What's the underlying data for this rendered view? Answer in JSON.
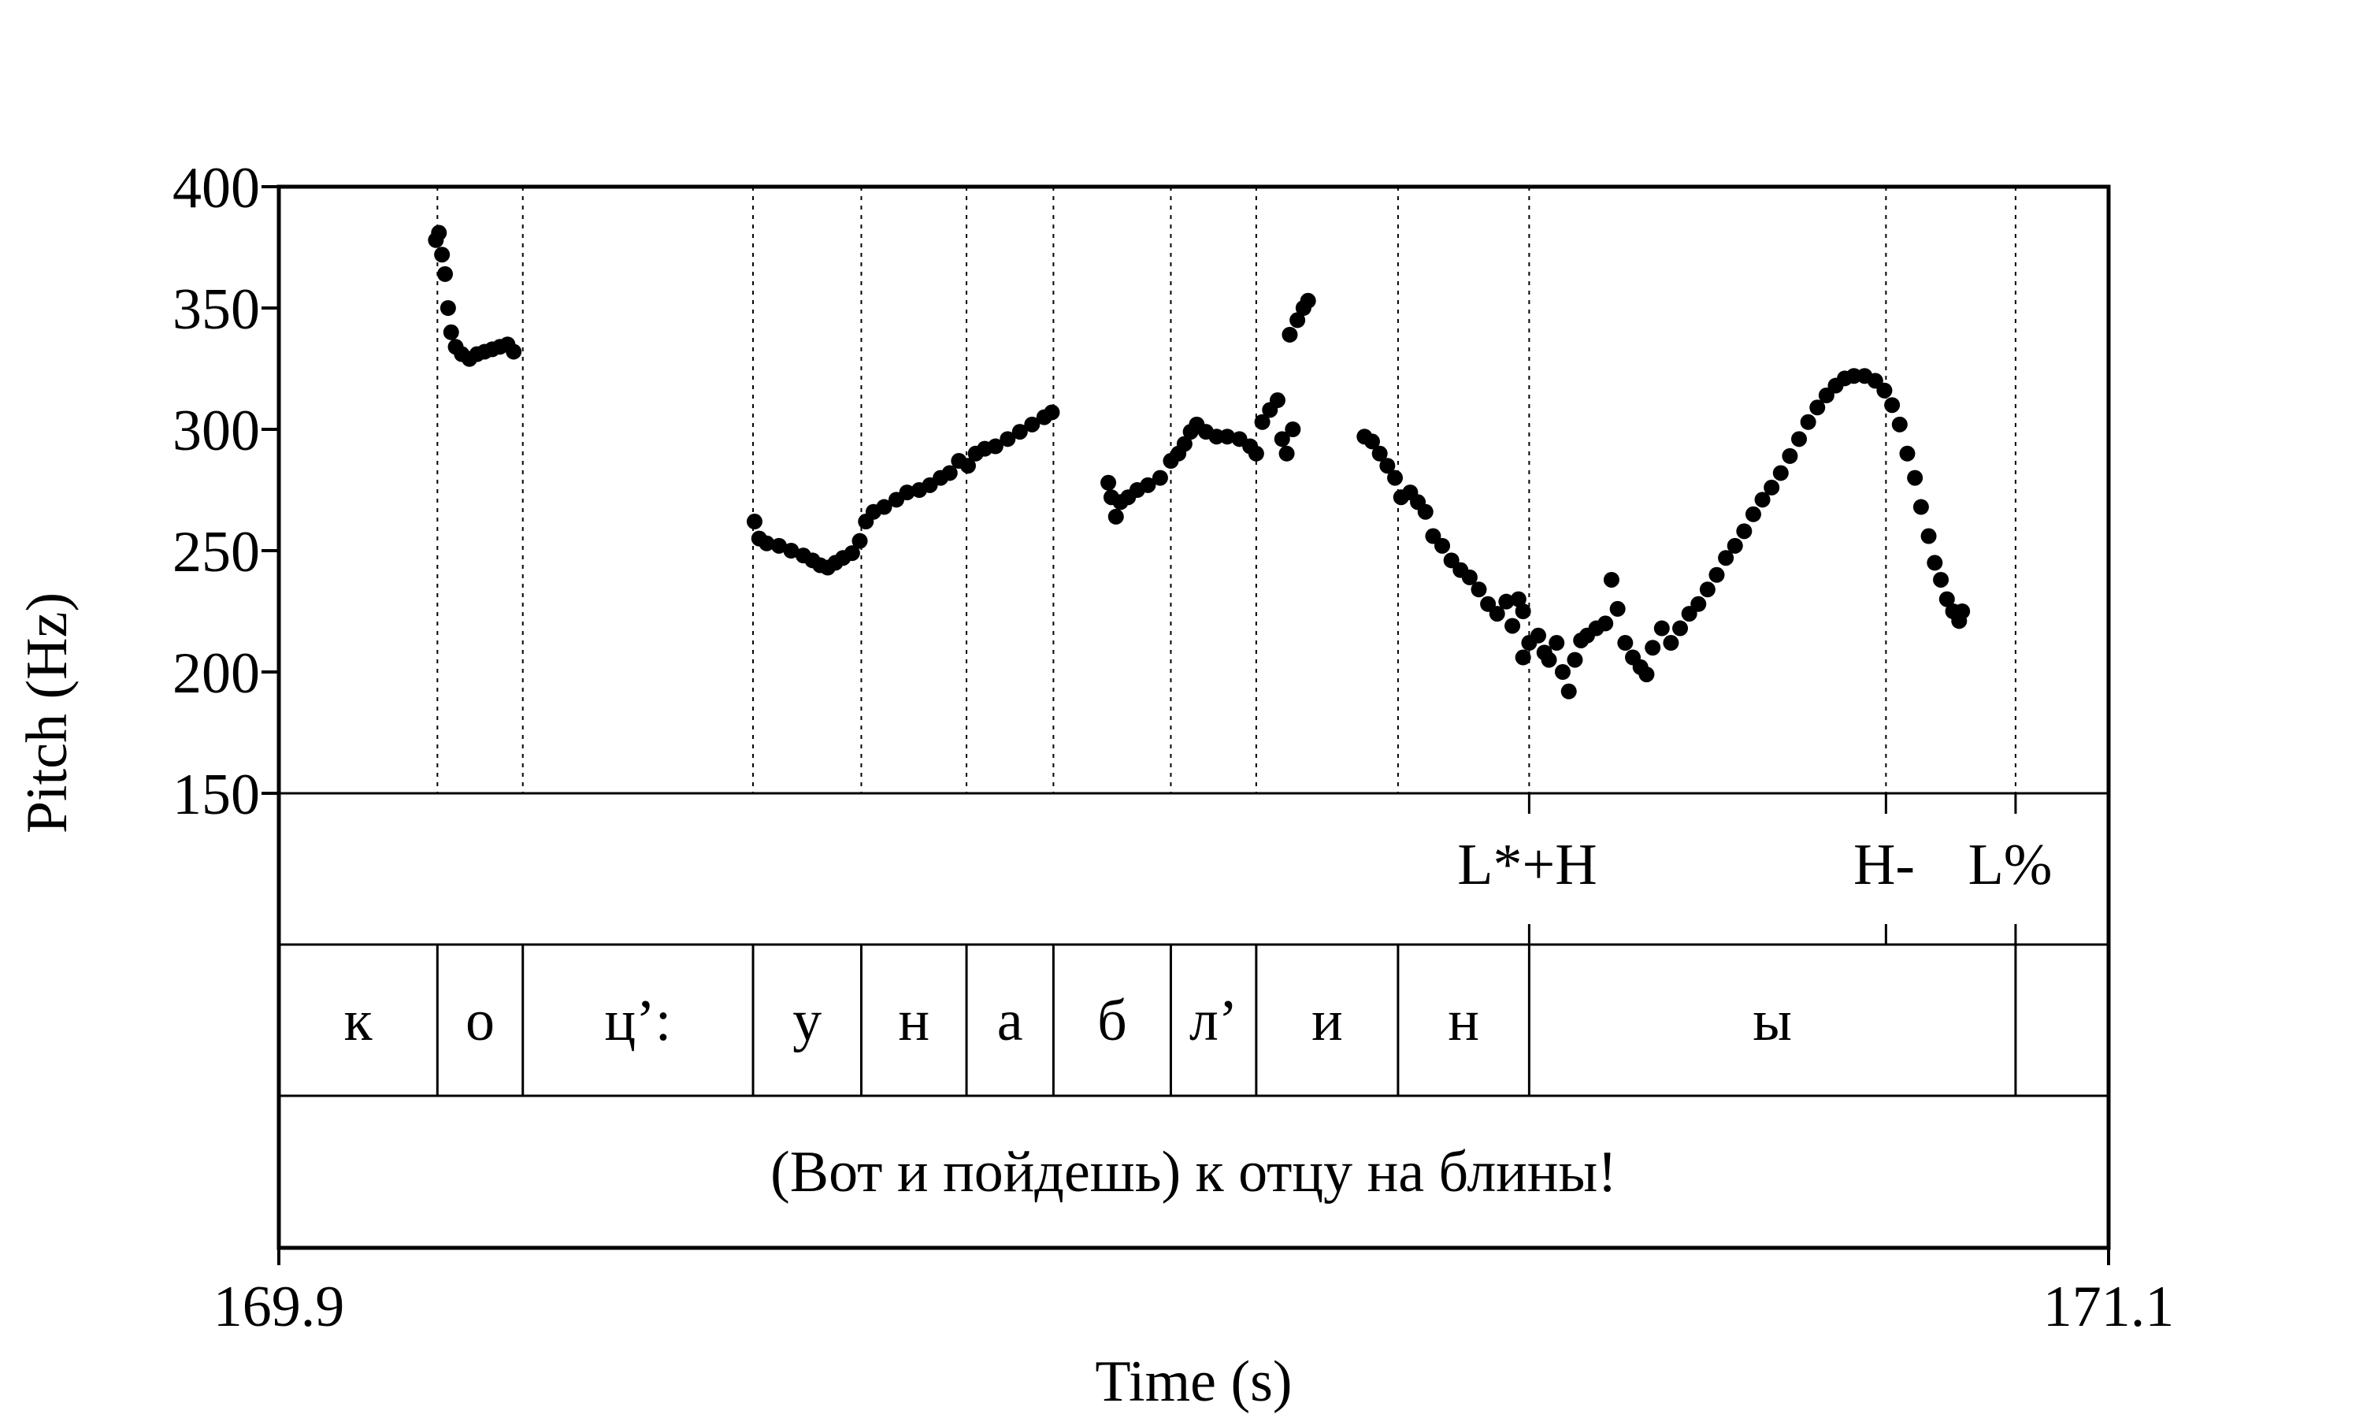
{
  "chart_data": {
    "type": "scatter",
    "xlabel": "Time (s)",
    "ylabel": "Pitch (Hz)",
    "xlim": [
      169.9,
      171.1
    ],
    "ylim": [
      150,
      400
    ],
    "x_tick_labels": [
      "169.9",
      "171.1"
    ],
    "y_ticks": [
      150,
      200,
      250,
      300,
      350,
      400
    ],
    "y_tick_labels": [
      "150",
      "200",
      "250",
      "300",
      "350",
      "400"
    ],
    "grid": false,
    "legend": "none",
    "point_color": "#000000",
    "boundaries": [
      170.004,
      170.06,
      170.211,
      170.282,
      170.351,
      170.408,
      170.485,
      170.541,
      170.634,
      170.72,
      170.954,
      171.039
    ],
    "tones": [
      {
        "label": "L*+H",
        "x": 170.72,
        "mark": 170.72
      },
      {
        "label": "H-",
        "x": 170.943,
        "mark": 170.954
      },
      {
        "label": "L%",
        "x": 171.039,
        "mark": 171.039
      }
    ],
    "segments": [
      "к",
      "о",
      "ц’:",
      "у",
      "н",
      "а",
      "б",
      "л’",
      "и",
      "н",
      "ы"
    ],
    "sentence": "(Вот и пойдешь) к отцу на блины!",
    "contours": [
      [
        [
          170.003,
          378
        ],
        [
          170.005,
          381
        ],
        [
          170.007,
          372
        ],
        [
          170.009,
          364
        ],
        [
          170.011,
          350
        ],
        [
          170.013,
          340
        ],
        [
          170.016,
          334
        ],
        [
          170.02,
          331
        ],
        [
          170.025,
          329
        ],
        [
          170.03,
          331
        ],
        [
          170.035,
          332
        ],
        [
          170.04,
          333
        ],
        [
          170.045,
          334
        ],
        [
          170.05,
          335
        ],
        [
          170.054,
          332
        ]
      ],
      [
        [
          170.212,
          262
        ],
        [
          170.215,
          255
        ],
        [
          170.22,
          253
        ],
        [
          170.228,
          252
        ],
        [
          170.236,
          250
        ],
        [
          170.244,
          248
        ],
        [
          170.25,
          246
        ],
        [
          170.255,
          244
        ],
        [
          170.26,
          243
        ],
        [
          170.265,
          245
        ],
        [
          170.27,
          247
        ],
        [
          170.276,
          249
        ],
        [
          170.281,
          254
        ],
        [
          170.285,
          262
        ],
        [
          170.29,
          266
        ],
        [
          170.297,
          268
        ],
        [
          170.305,
          271
        ],
        [
          170.312,
          274
        ],
        [
          170.32,
          275
        ],
        [
          170.327,
          277
        ],
        [
          170.334,
          280
        ],
        [
          170.34,
          282
        ],
        [
          170.346,
          287
        ],
        [
          170.352,
          285
        ],
        [
          170.357,
          290
        ],
        [
          170.363,
          292
        ],
        [
          170.37,
          293
        ],
        [
          170.378,
          296
        ],
        [
          170.386,
          299
        ],
        [
          170.394,
          302
        ],
        [
          170.402,
          305
        ],
        [
          170.407,
          307
        ]
      ],
      [
        [
          170.444,
          278
        ],
        [
          170.446,
          272
        ],
        [
          170.449,
          264
        ],
        [
          170.452,
          270
        ],
        [
          170.457,
          272
        ],
        [
          170.463,
          275
        ],
        [
          170.47,
          277
        ],
        [
          170.478,
          280
        ],
        [
          170.485,
          287
        ],
        [
          170.49,
          290
        ],
        [
          170.494,
          294
        ],
        [
          170.498,
          299
        ],
        [
          170.502,
          302
        ],
        [
          170.508,
          299
        ],
        [
          170.515,
          297
        ],
        [
          170.522,
          297
        ],
        [
          170.53,
          296
        ],
        [
          170.537,
          293
        ],
        [
          170.541,
          290
        ],
        [
          170.545,
          303
        ],
        [
          170.55,
          308
        ],
        [
          170.555,
          312
        ],
        [
          170.558,
          296
        ],
        [
          170.561,
          290
        ],
        [
          170.565,
          300
        ],
        [
          170.563,
          339
        ],
        [
          170.568,
          345
        ],
        [
          170.572,
          350
        ],
        [
          170.575,
          353
        ]
      ],
      [
        [
          170.612,
          297
        ],
        [
          170.617,
          295
        ],
        [
          170.622,
          290
        ],
        [
          170.627,
          285
        ],
        [
          170.632,
          280
        ],
        [
          170.636,
          272
        ],
        [
          170.642,
          274
        ],
        [
          170.647,
          270
        ],
        [
          170.652,
          266
        ],
        [
          170.657,
          256
        ],
        [
          170.663,
          252
        ],
        [
          170.669,
          246
        ],
        [
          170.675,
          242
        ],
        [
          170.681,
          239
        ],
        [
          170.687,
          234
        ],
        [
          170.693,
          228
        ],
        [
          170.699,
          224
        ],
        [
          170.705,
          229
        ],
        [
          170.709,
          219
        ],
        [
          170.713,
          230
        ],
        [
          170.716,
          225
        ],
        [
          170.72,
          212
        ],
        [
          170.716,
          206
        ],
        [
          170.726,
          215
        ],
        [
          170.73,
          208
        ],
        [
          170.733,
          205
        ],
        [
          170.738,
          212
        ],
        [
          170.742,
          200
        ],
        [
          170.746,
          192
        ],
        [
          170.75,
          205
        ],
        [
          170.754,
          213
        ],
        [
          170.758,
          215
        ],
        [
          170.764,
          218
        ],
        [
          170.77,
          220
        ],
        [
          170.774,
          238
        ],
        [
          170.778,
          226
        ],
        [
          170.783,
          212
        ],
        [
          170.788,
          206
        ],
        [
          170.793,
          202
        ],
        [
          170.797,
          199
        ],
        [
          170.801,
          210
        ],
        [
          170.807,
          218
        ],
        [
          170.813,
          212
        ],
        [
          170.819,
          218
        ],
        [
          170.825,
          224
        ],
        [
          170.831,
          228
        ],
        [
          170.837,
          234
        ],
        [
          170.843,
          240
        ],
        [
          170.849,
          247
        ],
        [
          170.855,
          252
        ],
        [
          170.861,
          258
        ],
        [
          170.867,
          265
        ],
        [
          170.873,
          271
        ],
        [
          170.879,
          276
        ],
        [
          170.885,
          282
        ],
        [
          170.891,
          289
        ],
        [
          170.897,
          296
        ],
        [
          170.903,
          303
        ],
        [
          170.909,
          309
        ],
        [
          170.915,
          314
        ],
        [
          170.921,
          318
        ],
        [
          170.927,
          321
        ],
        [
          170.933,
          322
        ],
        [
          170.94,
          322
        ],
        [
          170.947,
          320
        ],
        [
          170.953,
          316
        ],
        [
          170.958,
          310
        ],
        [
          170.963,
          302
        ],
        [
          170.968,
          290
        ],
        [
          170.973,
          280
        ],
        [
          170.977,
          268
        ],
        [
          170.982,
          256
        ],
        [
          170.986,
          245
        ],
        [
          170.99,
          238
        ],
        [
          170.994,
          230
        ],
        [
          170.998,
          225
        ],
        [
          171.002,
          221
        ],
        [
          171.004,
          225
        ]
      ]
    ]
  }
}
